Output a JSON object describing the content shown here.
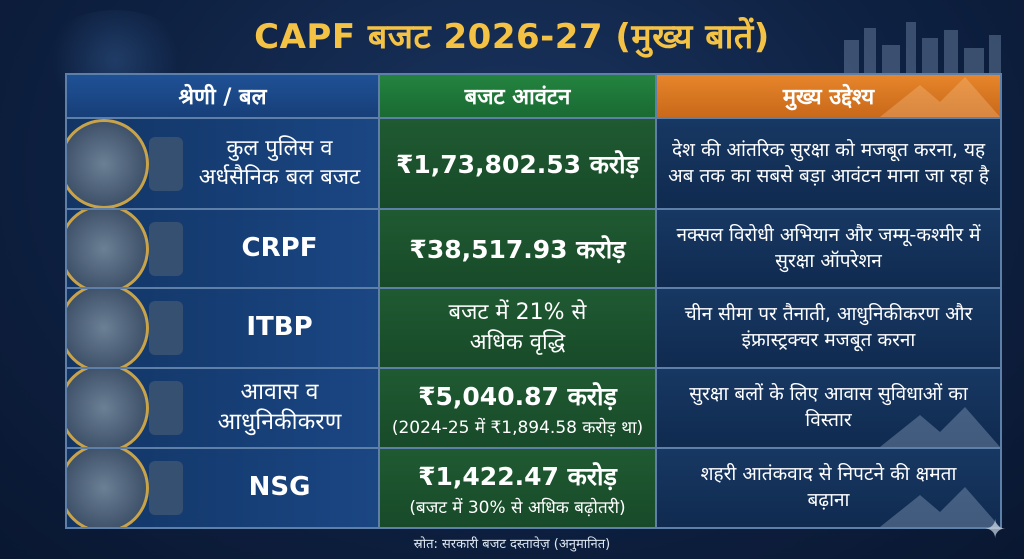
{
  "title": "CAPF बजट 2026-27 (मुख्य बातें)",
  "headers": [
    "श्रेणी / बल",
    "बजट आवंटन",
    "मुख्य उद्देश्य"
  ],
  "rows": [
    {
      "category": "कुल पुलिस व अर्धसैनिक बल बजट",
      "amount": "₹1,73,802.53 करोड़",
      "note": "",
      "objective": "देश की आंतरिक सुरक्षा को मजबूत करना, यह अब तक का सबसे बड़ा आवंटन माना जा रहा है"
    },
    {
      "category": "CRPF",
      "amount": "₹38,517.93 करोड़",
      "note": "",
      "objective": "नक्सल विरोधी अभियान और जम्मू-कश्मीर में सुरक्षा ऑपरेशन"
    },
    {
      "category": "ITBP",
      "amount": "",
      "note": "बजट में 21% से अधिक वृद्धि",
      "objective": "चीन सीमा पर तैनाती, आधुनिकीकरण और इंफ्रास्ट्रक्चर मजबूत करना"
    },
    {
      "category": "आवास व आधुनिकीकरण",
      "amount": "₹5,040.87 करोड़",
      "note": "(2024-25 में ₹1,894.58 करोड़ था)",
      "objective": "सुरक्षा बलों के लिए आवास सुविधाओं का विस्तार"
    },
    {
      "category": "NSG",
      "amount": "₹1,422.47 करोड़",
      "note": "(बजट में 30% से अधिक बढ़ोतरी)",
      "objective": "शहरी आतंकवाद से निपटने की क्षमता बढ़ाना"
    }
  ],
  "source": "स्रोत: सरकारी बजट दस्तावेज़ (अनुमानित)",
  "colors": {
    "title": "#f4c244",
    "header_category": "#1f5196",
    "header_budget": "#23843f",
    "header_objective": "#e6852a"
  }
}
